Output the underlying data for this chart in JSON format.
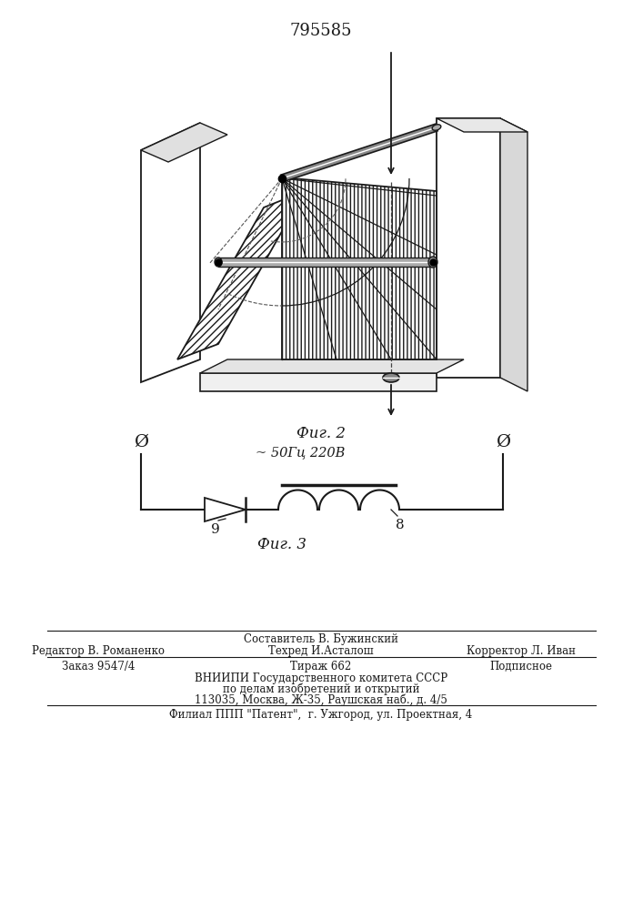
{
  "patent_number": "795585",
  "fig2_label": "Фиг. 2",
  "fig3_label": "Фиг. 3",
  "circuit_label": "~ 50Гц 220В",
  "label_9": "9",
  "label_8": "8",
  "editor_line": "Редактор В. Романенко",
  "composer_line": "Составитель В. Бужинский",
  "techred_line": "Техред И.Асталош",
  "corrector_line": "Корректор Л. Иван",
  "order_line": "Заказ 9547/4",
  "tirazh_line": "Тираж 662",
  "podpisnoe_line": "Подписное",
  "vniip_line1": "ВНИИПИ Государственного комитета СССР",
  "vniip_line2": "по делам изобретений и открытий",
  "vniip_line3": "113035, Москва, Ж-35, Раушская наб., д. 4/5",
  "filial_line": "Филиал ППП \"Патент\",  г. Ужгород, ул. Проектная, 4",
  "bg_color": "#ffffff",
  "line_color": "#1a1a1a"
}
